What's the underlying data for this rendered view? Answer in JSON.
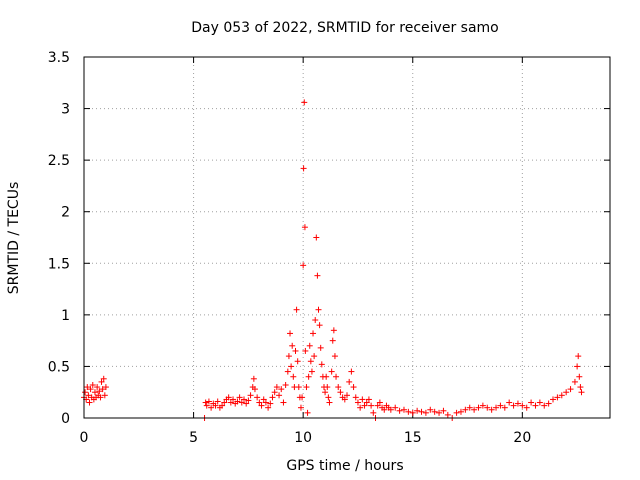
{
  "chart_data": {
    "type": "scatter",
    "title": "Day 053 of 2022, SRMTID for receiver samo",
    "xlabel": "GPS time / hours",
    "ylabel": "SRMTID / TECUs",
    "xlim": [
      0,
      24
    ],
    "ylim": [
      0,
      3.5
    ],
    "xticks": [
      0,
      5,
      10,
      15,
      20
    ],
    "xtick_labels": [
      "0",
      "5",
      "10",
      "15",
      "20"
    ],
    "yticks": [
      0,
      0.5,
      1,
      1.5,
      2,
      2.5,
      3,
      3.5
    ],
    "ytick_labels": [
      "0",
      "0.5",
      "1",
      "1.5",
      "2",
      "2.5",
      "3",
      "3.5"
    ],
    "grid": true,
    "marker": "+",
    "color": "#ff0000",
    "series": [
      {
        "name": "samo",
        "points": [
          [
            0.0,
            0.2
          ],
          [
            0.05,
            0.25
          ],
          [
            0.1,
            0.18
          ],
          [
            0.15,
            0.3
          ],
          [
            0.2,
            0.22
          ],
          [
            0.25,
            0.15
          ],
          [
            0.3,
            0.28
          ],
          [
            0.35,
            0.2
          ],
          [
            0.4,
            0.32
          ],
          [
            0.45,
            0.18
          ],
          [
            0.5,
            0.25
          ],
          [
            0.55,
            0.2
          ],
          [
            0.6,
            0.3
          ],
          [
            0.65,
            0.22
          ],
          [
            0.7,
            0.26
          ],
          [
            0.75,
            0.2
          ],
          [
            0.8,
            0.35
          ],
          [
            0.85,
            0.28
          ],
          [
            0.9,
            0.38
          ],
          [
            0.95,
            0.22
          ],
          [
            1.0,
            0.3
          ],
          [
            5.5,
            0.0
          ],
          [
            5.55,
            0.15
          ],
          [
            5.6,
            0.12
          ],
          [
            5.7,
            0.16
          ],
          [
            5.8,
            0.1
          ],
          [
            5.9,
            0.14
          ],
          [
            6.0,
            0.12
          ],
          [
            6.1,
            0.16
          ],
          [
            6.2,
            0.1
          ],
          [
            6.3,
            0.12
          ],
          [
            6.4,
            0.15
          ],
          [
            6.5,
            0.18
          ],
          [
            6.6,
            0.2
          ],
          [
            6.7,
            0.15
          ],
          [
            6.8,
            0.18
          ],
          [
            6.9,
            0.14
          ],
          [
            7.0,
            0.16
          ],
          [
            7.1,
            0.2
          ],
          [
            7.2,
            0.15
          ],
          [
            7.3,
            0.18
          ],
          [
            7.4,
            0.14
          ],
          [
            7.5,
            0.17
          ],
          [
            7.6,
            0.22
          ],
          [
            7.7,
            0.3
          ],
          [
            7.75,
            0.38
          ],
          [
            7.8,
            0.28
          ],
          [
            7.9,
            0.2
          ],
          [
            8.0,
            0.15
          ],
          [
            8.1,
            0.12
          ],
          [
            8.2,
            0.18
          ],
          [
            8.3,
            0.15
          ],
          [
            8.4,
            0.1
          ],
          [
            8.5,
            0.14
          ],
          [
            8.6,
            0.2
          ],
          [
            8.7,
            0.25
          ],
          [
            8.8,
            0.3
          ],
          [
            8.9,
            0.22
          ],
          [
            9.0,
            0.28
          ],
          [
            9.1,
            0.15
          ],
          [
            9.2,
            0.32
          ],
          [
            9.3,
            0.45
          ],
          [
            9.35,
            0.6
          ],
          [
            9.4,
            0.82
          ],
          [
            9.45,
            0.5
          ],
          [
            9.5,
            0.7
          ],
          [
            9.55,
            0.4
          ],
          [
            9.6,
            0.3
          ],
          [
            9.65,
            0.65
          ],
          [
            9.7,
            1.05
          ],
          [
            9.75,
            0.55
          ],
          [
            9.8,
            0.3
          ],
          [
            9.85,
            0.2
          ],
          [
            9.9,
            0.1
          ],
          [
            9.95,
            0.2
          ],
          [
            10.0,
            1.48
          ],
          [
            10.02,
            2.42
          ],
          [
            10.05,
            3.06
          ],
          [
            10.08,
            1.85
          ],
          [
            10.1,
            0.65
          ],
          [
            10.15,
            0.3
          ],
          [
            10.2,
            0.05
          ],
          [
            10.25,
            0.4
          ],
          [
            10.3,
            0.7
          ],
          [
            10.35,
            0.55
          ],
          [
            10.4,
            0.45
          ],
          [
            10.45,
            0.82
          ],
          [
            10.5,
            0.6
          ],
          [
            10.55,
            0.95
          ],
          [
            10.6,
            1.75
          ],
          [
            10.65,
            1.38
          ],
          [
            10.7,
            1.05
          ],
          [
            10.75,
            0.9
          ],
          [
            10.8,
            0.68
          ],
          [
            10.85,
            0.52
          ],
          [
            10.9,
            0.4
          ],
          [
            10.95,
            0.3
          ],
          [
            11.0,
            0.25
          ],
          [
            11.05,
            0.4
          ],
          [
            11.1,
            0.3
          ],
          [
            11.15,
            0.2
          ],
          [
            11.2,
            0.15
          ],
          [
            11.3,
            0.45
          ],
          [
            11.35,
            0.75
          ],
          [
            11.4,
            0.85
          ],
          [
            11.45,
            0.6
          ],
          [
            11.5,
            0.4
          ],
          [
            11.6,
            0.3
          ],
          [
            11.7,
            0.25
          ],
          [
            11.8,
            0.2
          ],
          [
            11.9,
            0.18
          ],
          [
            12.0,
            0.22
          ],
          [
            12.1,
            0.35
          ],
          [
            12.2,
            0.45
          ],
          [
            12.3,
            0.3
          ],
          [
            12.4,
            0.2
          ],
          [
            12.5,
            0.15
          ],
          [
            12.6,
            0.1
          ],
          [
            12.7,
            0.18
          ],
          [
            12.8,
            0.12
          ],
          [
            12.9,
            0.15
          ],
          [
            13.0,
            0.18
          ],
          [
            13.1,
            0.12
          ],
          [
            13.2,
            0.05
          ],
          [
            13.3,
            0.0
          ],
          [
            13.4,
            0.12
          ],
          [
            13.5,
            0.15
          ],
          [
            13.6,
            0.1
          ],
          [
            13.7,
            0.08
          ],
          [
            13.8,
            0.12
          ],
          [
            13.9,
            0.1
          ],
          [
            14.0,
            0.08
          ],
          [
            14.2,
            0.1
          ],
          [
            14.4,
            0.07
          ],
          [
            14.6,
            0.08
          ],
          [
            14.8,
            0.06
          ],
          [
            15.0,
            0.05
          ],
          [
            15.2,
            0.07
          ],
          [
            15.4,
            0.06
          ],
          [
            15.6,
            0.05
          ],
          [
            15.8,
            0.08
          ],
          [
            16.0,
            0.06
          ],
          [
            16.2,
            0.05
          ],
          [
            16.4,
            0.07
          ],
          [
            16.6,
            0.03
          ],
          [
            16.8,
            0.0
          ],
          [
            17.0,
            0.05
          ],
          [
            17.2,
            0.06
          ],
          [
            17.4,
            0.08
          ],
          [
            17.6,
            0.1
          ],
          [
            17.8,
            0.08
          ],
          [
            18.0,
            0.1
          ],
          [
            18.2,
            0.12
          ],
          [
            18.4,
            0.1
          ],
          [
            18.6,
            0.08
          ],
          [
            18.8,
            0.1
          ],
          [
            19.0,
            0.12
          ],
          [
            19.2,
            0.1
          ],
          [
            19.4,
            0.15
          ],
          [
            19.6,
            0.12
          ],
          [
            19.8,
            0.14
          ],
          [
            20.0,
            0.12
          ],
          [
            20.2,
            0.1
          ],
          [
            20.4,
            0.15
          ],
          [
            20.6,
            0.12
          ],
          [
            20.8,
            0.15
          ],
          [
            21.0,
            0.12
          ],
          [
            21.2,
            0.14
          ],
          [
            21.4,
            0.18
          ],
          [
            21.6,
            0.2
          ],
          [
            21.8,
            0.22
          ],
          [
            22.0,
            0.25
          ],
          [
            22.2,
            0.28
          ],
          [
            22.4,
            0.35
          ],
          [
            22.5,
            0.5
          ],
          [
            22.55,
            0.6
          ],
          [
            22.6,
            0.4
          ],
          [
            22.65,
            0.3
          ],
          [
            22.7,
            0.25
          ]
        ]
      }
    ]
  }
}
